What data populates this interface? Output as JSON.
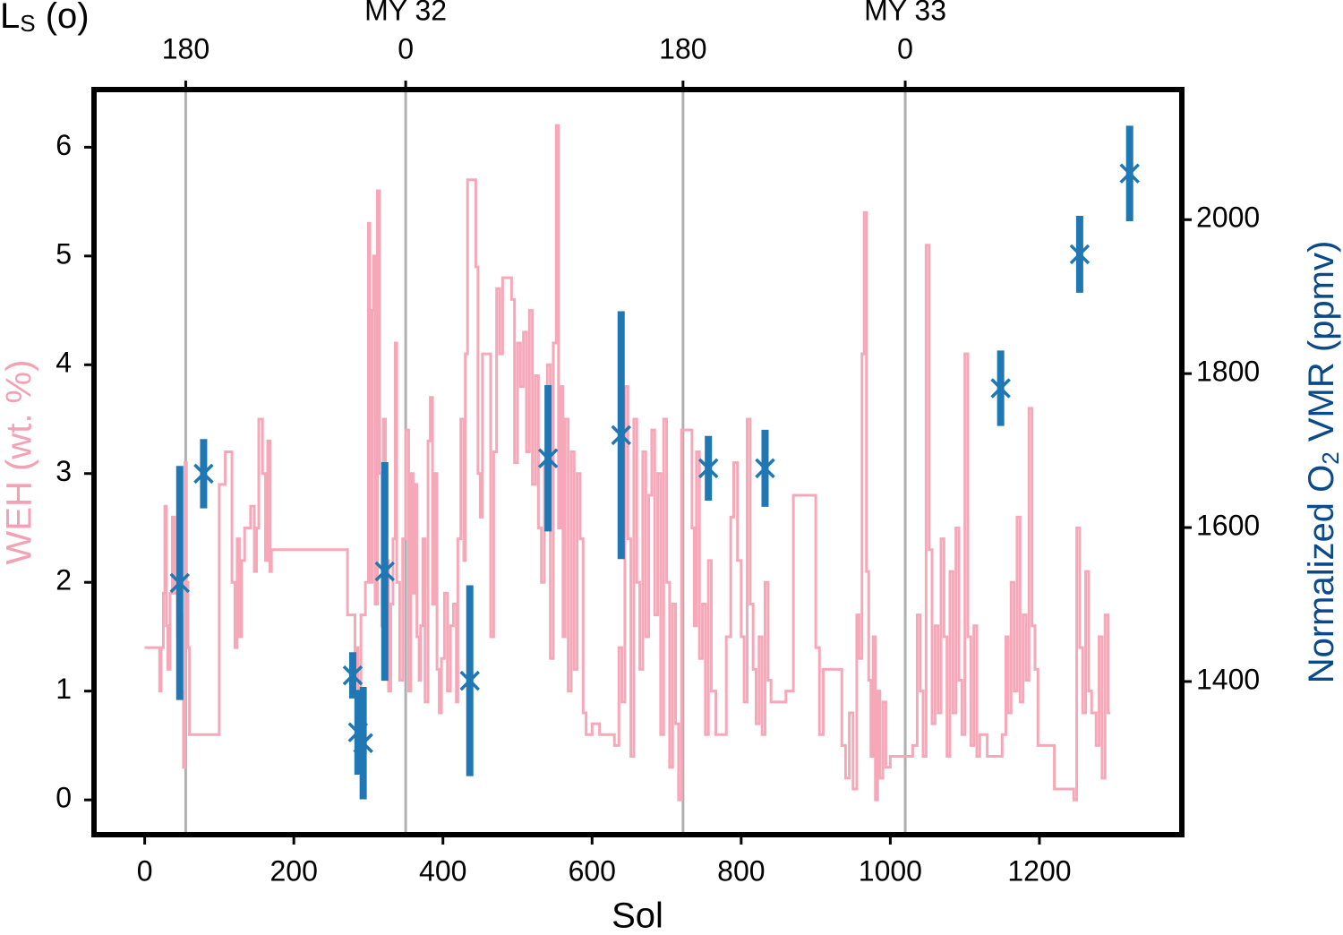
{
  "chart_data": {
    "type": "line",
    "xlabel": "Sol",
    "ylabel": "WEH (wt. %)",
    "y2label": {
      "main": "Normalized O",
      "sub": "2",
      "rest": " VMR (ppmv)"
    },
    "x2label": {
      "main": "L",
      "sub": "S",
      "rest": " (o)"
    },
    "xlim": [
      -68,
      1391
    ],
    "ylim": [
      -0.32,
      6.53
    ],
    "y2lim": [
      1201,
      2169
    ],
    "xticks": [
      0,
      200,
      400,
      600,
      800,
      1000,
      1200
    ],
    "yticks": [
      0,
      1,
      2,
      3,
      4,
      5,
      6
    ],
    "y2ticks": [
      1400,
      1600,
      1800,
      2000
    ],
    "x2ticks": [
      {
        "value": 55,
        "label": "180"
      },
      {
        "value": 350,
        "label": "0"
      },
      {
        "value": 722,
        "label": "180"
      },
      {
        "value": 1020,
        "label": "0"
      }
    ],
    "x2annotations": [
      {
        "value": 350,
        "label": "MY 32"
      },
      {
        "value": 1020,
        "label": "MY 33"
      }
    ],
    "vlines_color": "#b0b0b0",
    "ycolor": "#f4a0b5",
    "y2color": "#0b4a8a",
    "series": [
      {
        "type": "line",
        "drawstyle": "steps-post",
        "color": "#f7a8b8",
        "x": [
          0,
          18,
          20,
          22,
          25,
          27,
          29,
          31,
          34,
          37,
          40,
          44,
          46,
          48,
          50,
          52,
          54,
          56,
          58,
          60,
          100,
          108,
          117,
          121,
          124,
          127,
          130,
          134,
          142,
          147,
          150,
          153,
          158,
          162,
          165,
          168,
          170,
          272,
          282,
          284,
          286,
          290,
          296,
          300,
          302,
          305,
          307,
          309,
          312,
          315,
          318,
          320,
          323,
          327,
          330,
          333,
          336,
          338,
          342,
          346,
          350,
          354,
          357,
          360,
          363,
          365,
          368,
          370,
          373,
          376,
          380,
          383,
          386,
          389,
          392,
          395,
          398,
          402,
          406,
          410,
          414,
          418,
          420,
          424,
          428,
          430,
          433,
          440,
          444,
          447,
          450,
          453,
          460,
          464,
          468,
          472,
          476,
          480,
          492,
          496,
          500,
          504,
          508,
          512,
          516,
          520,
          524,
          528,
          532,
          536,
          540,
          544,
          548,
          552,
          555,
          558,
          561,
          564,
          568,
          572,
          576,
          580,
          584,
          588,
          592,
          600,
          610,
          630,
          636,
          640,
          644,
          648,
          652,
          656,
          660,
          664,
          668,
          672,
          676,
          680,
          684,
          688,
          692,
          696,
          700,
          704,
          708,
          712,
          716,
          720,
          730,
          734,
          737,
          740,
          744,
          748,
          752,
          756,
          760,
          766,
          770,
          780,
          786,
          790,
          795,
          800,
          804,
          808,
          812,
          816,
          820,
          824,
          828,
          832,
          836,
          840,
          860,
          870,
          900,
          905,
          910,
          930,
          935,
          940,
          945,
          950,
          955,
          958,
          962,
          965,
          968,
          971,
          974,
          977,
          980,
          983,
          986,
          990,
          994,
          1000,
          1030,
          1036,
          1040,
          1044,
          1048,
          1052,
          1056,
          1060,
          1064,
          1068,
          1072,
          1076,
          1080,
          1084,
          1088,
          1092,
          1096,
          1100,
          1104,
          1108,
          1112,
          1116,
          1120,
          1130,
          1150,
          1155,
          1158,
          1162,
          1166,
          1170,
          1174,
          1178,
          1182,
          1186,
          1190,
          1194,
          1198,
          1220,
          1246,
          1250,
          1254,
          1258,
          1262,
          1266,
          1270,
          1276,
          1280,
          1284,
          1288,
          1292,
          1295
        ],
        "values": [
          1.4,
          1.4,
          1.0,
          1.4,
          1.9,
          2.7,
          1.6,
          1.2,
          1.9,
          2.6,
          1.9,
          1.5,
          2.4,
          1.7,
          1.0,
          0.3,
          3.1,
          2.0,
          1.4,
          0.6,
          2.9,
          3.2,
          2.0,
          1.4,
          2.4,
          1.5,
          2.2,
          2.5,
          2.7,
          2.1,
          2.5,
          3.5,
          3.0,
          2.2,
          3.3,
          2.1,
          2.3,
          1.7,
          1.1,
          1.4,
          1.0,
          1.7,
          2.0,
          5.3,
          2.0,
          4.5,
          5.0,
          1.8,
          5.6,
          3.0,
          1.6,
          3.5,
          2.2,
          1.0,
          1.8,
          2.4,
          4.2,
          2.0,
          1.1,
          2.4,
          3.4,
          1.0,
          3.0,
          1.9,
          2.9,
          1.5,
          1.1,
          1.6,
          2.4,
          0.9,
          3.3,
          3.7,
          1.8,
          3.0,
          1.2,
          0.8,
          1.3,
          1.9,
          1.0,
          1.6,
          1.8,
          0.9,
          2.4,
          3.5,
          2.2,
          4.1,
          5.7,
          5.7,
          4.9,
          3.0,
          2.6,
          4.1,
          4.1,
          1.5,
          3.2,
          4.7,
          4.1,
          4.8,
          4.6,
          3.1,
          4.2,
          3.8,
          4.3,
          3.2,
          4.5,
          2.9,
          3.9,
          2.5,
          2.0,
          3.1,
          4.0,
          1.3,
          4.2,
          6.2,
          2.5,
          3.8,
          1.5,
          3.5,
          1.0,
          3.2,
          1.2,
          3.0,
          2.4,
          0.8,
          0.6,
          0.7,
          0.6,
          0.5,
          1.4,
          0.9,
          3.8,
          2.4,
          0.4,
          3.5,
          2.0,
          1.2,
          3.2,
          1.5,
          2.8,
          3.4,
          1.7,
          3.0,
          0.6,
          3.5,
          2.0,
          0.3,
          1.8,
          0.7,
          0.0,
          3.4,
          3.4,
          2.5,
          1.6,
          3.2,
          1.3,
          1.8,
          0.6,
          2.2,
          1.0,
          0.6,
          0.6,
          1.5,
          2.6,
          3.1,
          2.2,
          1.5,
          0.9,
          3.5,
          1.8,
          1.2,
          0.7,
          1.5,
          0.6,
          2.0,
          1.1,
          0.9,
          1.0,
          2.8,
          1.4,
          0.6,
          1.2,
          1.2,
          0.5,
          0.2,
          0.8,
          0.1,
          1.7,
          1.3,
          4.1,
          5.4,
          2.1,
          1.1,
          0.4,
          1.5,
          0.0,
          1.0,
          0.2,
          0.9,
          0.3,
          0.4,
          0.5,
          1.7,
          1.0,
          0.4,
          5.1,
          2.3,
          0.7,
          1.6,
          0.8,
          2.4,
          1.5,
          0.4,
          2.1,
          0.8,
          2.5,
          1.1,
          0.6,
          4.1,
          1.5,
          0.5,
          1.6,
          0.4,
          0.6,
          0.4,
          0.6,
          1.5,
          0.8,
          2.0,
          1.0,
          2.6,
          0.9,
          1.7,
          1.1,
          3.6,
          1.6,
          1.2,
          0.5,
          0.1,
          0.0,
          2.5,
          1.4,
          0.8,
          2.1,
          1.0,
          0.8,
          0.5,
          1.5,
          0.2,
          1.7,
          0.8,
          0.8
        ]
      },
      {
        "type": "errorbar",
        "axis": "y2",
        "color": "#1f77b4",
        "x": [
          47,
          79,
          279,
          286,
          293,
          322,
          436,
          541,
          639,
          756,
          832,
          1148,
          1254,
          1321
        ],
        "values": [
          1528,
          1670,
          1408,
          1334,
          1320,
          1543,
          1401,
          1690,
          1720,
          1677,
          1677,
          1781,
          1955,
          2060
        ],
        "errors": [
          152,
          45,
          30,
          55,
          73,
          142,
          124,
          95,
          161,
          42,
          50,
          49,
          50,
          62
        ]
      }
    ]
  }
}
